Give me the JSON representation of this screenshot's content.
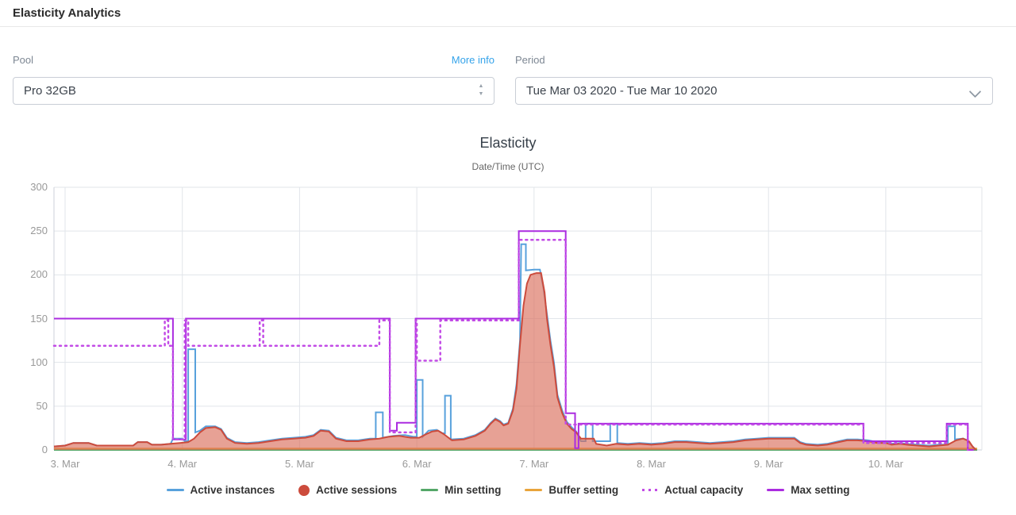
{
  "header": {
    "title": "Elasticity Analytics"
  },
  "controls": {
    "pool_label": "Pool",
    "more_info_label": "More info",
    "pool_value": "Pro 32GB",
    "period_label": "Period",
    "period_value": "Tue Mar 03 2020 - Tue Mar 10 2020"
  },
  "chart_data": {
    "type": "line",
    "title": "Elasticity",
    "subtitle": "Date/Time (UTC)",
    "xlabel": "Date/Time (UTC)",
    "ylabel": "",
    "x_domain_days": [
      2.905,
      10.82
    ],
    "ylim": [
      0,
      300
    ],
    "grid": true,
    "legend_position": "bottom",
    "y_ticks": [
      0,
      50,
      100,
      150,
      200,
      250,
      300
    ],
    "x_ticks": [
      {
        "day": 3,
        "label": "3. Mar"
      },
      {
        "day": 4,
        "label": "4. Mar"
      },
      {
        "day": 5,
        "label": "5. Mar"
      },
      {
        "day": 6,
        "label": "6. Mar"
      },
      {
        "day": 7,
        "label": "7. Mar"
      },
      {
        "day": 8,
        "label": "8. Mar"
      },
      {
        "day": 9,
        "label": "9. Mar"
      },
      {
        "day": 10,
        "label": "10. Mar"
      }
    ],
    "colors": {
      "grid": "#e1e5ea",
      "axis": "#ccd2d9",
      "tick_text": "#999999"
    },
    "series": [
      {
        "name": "Active instances",
        "marker": "line",
        "color": "#58a1dc",
        "type": "line",
        "points": [
          [
            2.905,
            4
          ],
          [
            3.0,
            5
          ],
          [
            3.07,
            8
          ],
          [
            3.2,
            8
          ],
          [
            3.27,
            5
          ],
          [
            3.45,
            5
          ],
          [
            3.58,
            5
          ],
          [
            3.62,
            9
          ],
          [
            3.7,
            9
          ],
          [
            3.74,
            6
          ],
          [
            3.82,
            6
          ],
          [
            3.9,
            7
          ],
          [
            3.92,
            13
          ],
          [
            4.0,
            13
          ],
          [
            4.02,
            10
          ],
          [
            4.05,
            10
          ],
          [
            4.05,
            115
          ],
          [
            4.11,
            115
          ],
          [
            4.11,
            20
          ],
          [
            4.15,
            22
          ],
          [
            4.2,
            27
          ],
          [
            4.28,
            27
          ],
          [
            4.33,
            24
          ],
          [
            4.38,
            14
          ],
          [
            4.45,
            9
          ],
          [
            4.55,
            8
          ],
          [
            4.65,
            9
          ],
          [
            4.75,
            11
          ],
          [
            4.85,
            13
          ],
          [
            4.95,
            14
          ],
          [
            5.05,
            15
          ],
          [
            5.12,
            17
          ],
          [
            5.18,
            23
          ],
          [
            5.25,
            22
          ],
          [
            5.31,
            14
          ],
          [
            5.4,
            11
          ],
          [
            5.5,
            11
          ],
          [
            5.6,
            13
          ],
          [
            5.65,
            13
          ],
          [
            5.65,
            43
          ],
          [
            5.71,
            43
          ],
          [
            5.71,
            14
          ],
          [
            5.8,
            16
          ],
          [
            5.9,
            17
          ],
          [
            5.97,
            15
          ],
          [
            6.0,
            15
          ],
          [
            6.0,
            80
          ],
          [
            6.05,
            80
          ],
          [
            6.05,
            15
          ],
          [
            6.1,
            22
          ],
          [
            6.17,
            23
          ],
          [
            6.22,
            19
          ],
          [
            6.24,
            19
          ],
          [
            6.24,
            62
          ],
          [
            6.29,
            62
          ],
          [
            6.29,
            12
          ],
          [
            6.4,
            13
          ],
          [
            6.5,
            17
          ],
          [
            6.58,
            23
          ],
          [
            6.63,
            31
          ],
          [
            6.67,
            36
          ],
          [
            6.71,
            33
          ],
          [
            6.74,
            29
          ],
          [
            6.78,
            31
          ],
          [
            6.82,
            47
          ],
          [
            6.85,
            75
          ],
          [
            6.88,
            125
          ],
          [
            6.89,
            235
          ],
          [
            6.93,
            235
          ],
          [
            6.93,
            205
          ],
          [
            7.0,
            206
          ],
          [
            7.05,
            206
          ],
          [
            7.08,
            185
          ],
          [
            7.11,
            155
          ],
          [
            7.14,
            125
          ],
          [
            7.17,
            100
          ],
          [
            7.2,
            63
          ],
          [
            7.24,
            45
          ],
          [
            7.28,
            32
          ],
          [
            7.32,
            26
          ],
          [
            7.36,
            21
          ],
          [
            7.4,
            10
          ],
          [
            7.44,
            10
          ],
          [
            7.44,
            30
          ],
          [
            7.5,
            30
          ],
          [
            7.5,
            10
          ],
          [
            7.62,
            10
          ],
          [
            7.65,
            10
          ],
          [
            7.65,
            30
          ],
          [
            7.71,
            30
          ],
          [
            7.71,
            8
          ],
          [
            7.8,
            7
          ],
          [
            7.9,
            8
          ],
          [
            8.0,
            7
          ],
          [
            8.1,
            8
          ],
          [
            8.2,
            10
          ],
          [
            8.3,
            10
          ],
          [
            8.4,
            9
          ],
          [
            8.5,
            8
          ],
          [
            8.6,
            9
          ],
          [
            8.7,
            10
          ],
          [
            8.8,
            12
          ],
          [
            8.9,
            13
          ],
          [
            9.0,
            14
          ],
          [
            9.15,
            14
          ],
          [
            9.22,
            14
          ],
          [
            9.27,
            9
          ],
          [
            9.32,
            7
          ],
          [
            9.42,
            6
          ],
          [
            9.5,
            7
          ],
          [
            9.6,
            10
          ],
          [
            9.67,
            12
          ],
          [
            9.76,
            12
          ],
          [
            9.85,
            11
          ],
          [
            9.93,
            9
          ],
          [
            10.0,
            10
          ],
          [
            10.05,
            7
          ],
          [
            10.12,
            8
          ],
          [
            10.18,
            7
          ],
          [
            10.27,
            6
          ],
          [
            10.37,
            5
          ],
          [
            10.45,
            6
          ],
          [
            10.53,
            6
          ],
          [
            10.53,
            27
          ],
          [
            10.59,
            27
          ],
          [
            10.59,
            12
          ],
          [
            10.66,
            13
          ],
          [
            10.7,
            11
          ],
          [
            10.74,
            4
          ],
          [
            10.77,
            0
          ]
        ]
      },
      {
        "name": "Active sessions",
        "marker": "circle",
        "color": "#cc4b3c",
        "type": "area",
        "fill": "rgba(218,110,92,0.65)",
        "points": [
          [
            2.905,
            4
          ],
          [
            3.0,
            5
          ],
          [
            3.07,
            8
          ],
          [
            3.2,
            8
          ],
          [
            3.27,
            5
          ],
          [
            3.45,
            5
          ],
          [
            3.58,
            5
          ],
          [
            3.62,
            9
          ],
          [
            3.7,
            9
          ],
          [
            3.74,
            6
          ],
          [
            3.82,
            6
          ],
          [
            3.9,
            7
          ],
          [
            3.98,
            8
          ],
          [
            4.05,
            9
          ],
          [
            4.1,
            13
          ],
          [
            4.15,
            20
          ],
          [
            4.2,
            25
          ],
          [
            4.28,
            26
          ],
          [
            4.33,
            23
          ],
          [
            4.38,
            13
          ],
          [
            4.45,
            8
          ],
          [
            4.55,
            7
          ],
          [
            4.65,
            8
          ],
          [
            4.75,
            10
          ],
          [
            4.85,
            12
          ],
          [
            4.95,
            13
          ],
          [
            5.05,
            14
          ],
          [
            5.12,
            16
          ],
          [
            5.18,
            22
          ],
          [
            5.25,
            21
          ],
          [
            5.31,
            13
          ],
          [
            5.4,
            10
          ],
          [
            5.5,
            10
          ],
          [
            5.6,
            12
          ],
          [
            5.68,
            13
          ],
          [
            5.76,
            15
          ],
          [
            5.85,
            16
          ],
          [
            5.95,
            14
          ],
          [
            6.02,
            14
          ],
          [
            6.08,
            18
          ],
          [
            6.13,
            21
          ],
          [
            6.18,
            22
          ],
          [
            6.23,
            18
          ],
          [
            6.3,
            11
          ],
          [
            6.4,
            12
          ],
          [
            6.5,
            16
          ],
          [
            6.58,
            22
          ],
          [
            6.63,
            30
          ],
          [
            6.67,
            35
          ],
          [
            6.71,
            32
          ],
          [
            6.74,
            28
          ],
          [
            6.78,
            30
          ],
          [
            6.82,
            45
          ],
          [
            6.85,
            70
          ],
          [
            6.88,
            120
          ],
          [
            6.91,
            165
          ],
          [
            6.94,
            190
          ],
          [
            6.97,
            200
          ],
          [
            7.02,
            202
          ],
          [
            7.06,
            202
          ],
          [
            7.09,
            180
          ],
          [
            7.11,
            150
          ],
          [
            7.14,
            120
          ],
          [
            7.17,
            95
          ],
          [
            7.2,
            60
          ],
          [
            7.24,
            42
          ],
          [
            7.28,
            30
          ],
          [
            7.32,
            24
          ],
          [
            7.36,
            20
          ],
          [
            7.4,
            13
          ],
          [
            7.51,
            13
          ],
          [
            7.53,
            7
          ],
          [
            7.62,
            5
          ],
          [
            7.7,
            7
          ],
          [
            7.8,
            6
          ],
          [
            7.9,
            7
          ],
          [
            8.0,
            6
          ],
          [
            8.1,
            7
          ],
          [
            8.2,
            9
          ],
          [
            8.3,
            9
          ],
          [
            8.4,
            8
          ],
          [
            8.5,
            7
          ],
          [
            8.6,
            8
          ],
          [
            8.7,
            9
          ],
          [
            8.8,
            11
          ],
          [
            8.9,
            12
          ],
          [
            9.0,
            13
          ],
          [
            9.15,
            13
          ],
          [
            9.22,
            13
          ],
          [
            9.27,
            8
          ],
          [
            9.32,
            6
          ],
          [
            9.42,
            5
          ],
          [
            9.5,
            6
          ],
          [
            9.6,
            9
          ],
          [
            9.67,
            11
          ],
          [
            9.76,
            11
          ],
          [
            9.85,
            10
          ],
          [
            9.93,
            8
          ],
          [
            10.0,
            8
          ],
          [
            10.05,
            6
          ],
          [
            10.12,
            7
          ],
          [
            10.18,
            6
          ],
          [
            10.27,
            5
          ],
          [
            10.37,
            4
          ],
          [
            10.45,
            5
          ],
          [
            10.53,
            6
          ],
          [
            10.6,
            11
          ],
          [
            10.66,
            13
          ],
          [
            10.71,
            10
          ],
          [
            10.74,
            4
          ],
          [
            10.77,
            0
          ]
        ]
      },
      {
        "name": "Min setting",
        "marker": "line",
        "color": "#54a768",
        "type": "line",
        "points": [
          [
            2.905,
            0
          ],
          [
            10.78,
            0
          ]
        ]
      },
      {
        "name": "Buffer setting",
        "marker": "line",
        "color": "#e9a43b",
        "type": "line",
        "points": [
          [
            2.905,
            1.5
          ],
          [
            10.78,
            1.5
          ]
        ]
      },
      {
        "name": "Actual capacity",
        "marker": "dots",
        "color": "#c24be6",
        "type": "dotted",
        "points": [
          [
            2.905,
            119
          ],
          [
            3.85,
            119
          ],
          [
            3.85,
            148
          ],
          [
            3.88,
            148
          ],
          [
            3.88,
            119
          ],
          [
            3.92,
            119
          ],
          [
            3.92,
            12
          ],
          [
            4.02,
            12
          ],
          [
            4.02,
            148
          ],
          [
            4.05,
            148
          ],
          [
            4.05,
            119
          ],
          [
            4.66,
            119
          ],
          [
            4.66,
            148
          ],
          [
            4.69,
            148
          ],
          [
            4.69,
            119
          ],
          [
            5.68,
            119
          ],
          [
            5.68,
            148
          ],
          [
            5.77,
            148
          ],
          [
            5.77,
            20
          ],
          [
            5.99,
            20
          ],
          [
            5.99,
            148
          ],
          [
            6.0,
            148
          ],
          [
            6.0,
            102
          ],
          [
            6.2,
            102
          ],
          [
            6.2,
            148
          ],
          [
            6.87,
            148
          ],
          [
            6.87,
            240
          ],
          [
            7.27,
            240
          ],
          [
            7.27,
            29
          ],
          [
            9.81,
            29
          ],
          [
            9.81,
            8
          ],
          [
            10.52,
            8
          ],
          [
            10.52,
            29
          ],
          [
            10.7,
            29
          ],
          [
            10.7,
            0
          ]
        ]
      },
      {
        "name": "Max setting",
        "marker": "line",
        "color": "#ab2ce0",
        "type": "line",
        "points": [
          [
            2.905,
            150
          ],
          [
            3.92,
            150
          ],
          [
            3.92,
            12
          ],
          [
            4.03,
            12
          ],
          [
            4.03,
            150
          ],
          [
            5.77,
            150
          ],
          [
            5.77,
            22
          ],
          [
            5.83,
            22
          ],
          [
            5.83,
            31
          ],
          [
            5.99,
            31
          ],
          [
            5.99,
            150
          ],
          [
            6.87,
            150
          ],
          [
            6.87,
            250
          ],
          [
            7.27,
            250
          ],
          [
            7.27,
            42
          ],
          [
            7.35,
            42
          ],
          [
            7.35,
            2
          ],
          [
            7.38,
            2
          ],
          [
            7.38,
            30
          ],
          [
            9.81,
            30
          ],
          [
            9.81,
            10
          ],
          [
            10.52,
            10
          ],
          [
            10.52,
            30
          ],
          [
            10.7,
            30
          ],
          [
            10.7,
            0
          ],
          [
            10.75,
            0
          ]
        ]
      }
    ]
  }
}
